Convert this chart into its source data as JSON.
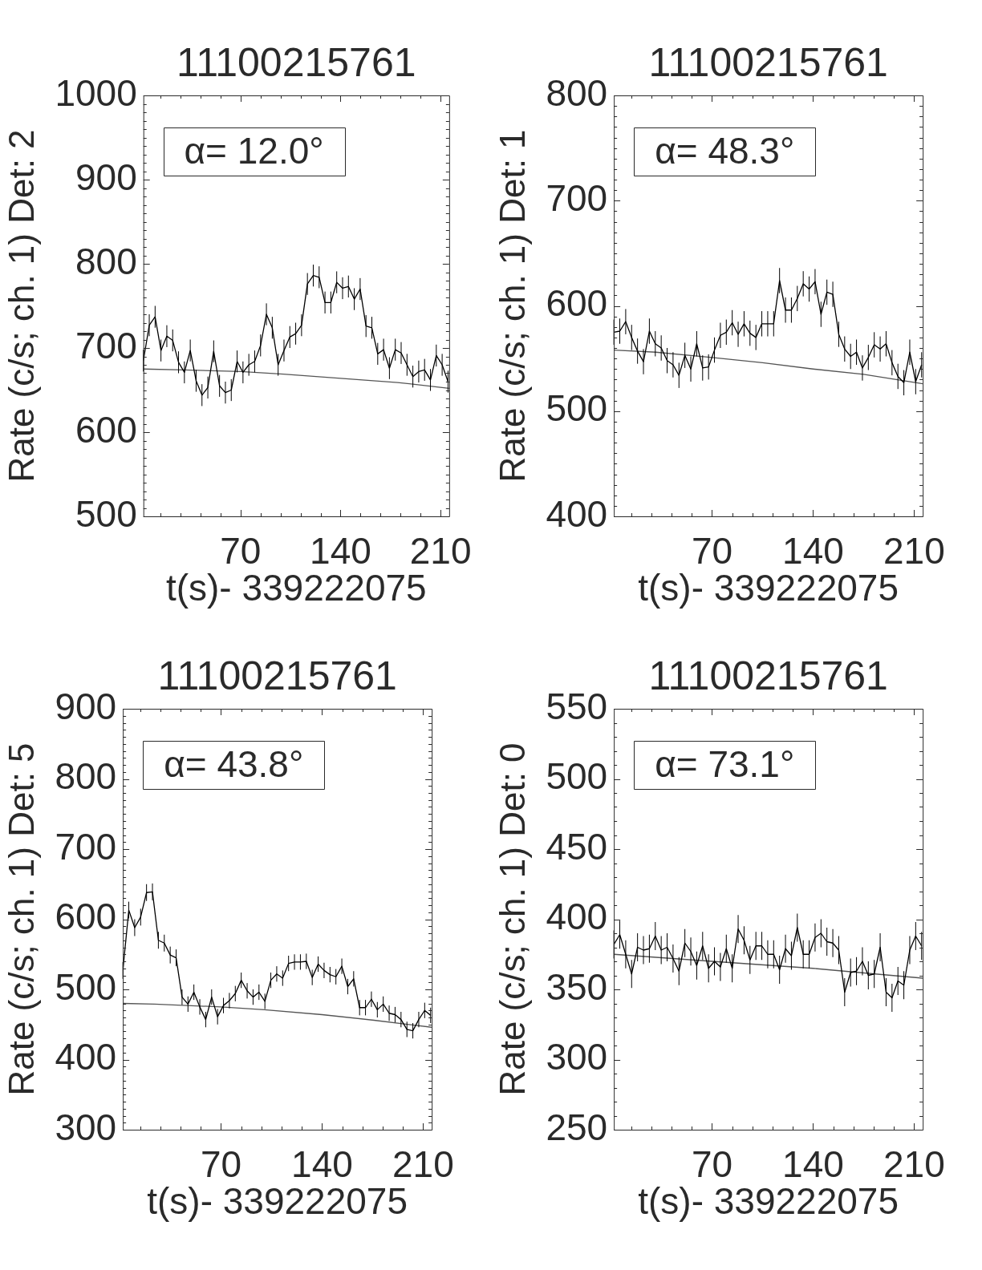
{
  "chart_data": [
    {
      "type": "line",
      "title": "11100215761",
      "xlabel": "t(s)- 339222075",
      "ylabel": "Rate (c/s; ch. 1) Det: 2",
      "annotations": [
        "α= 12.0°"
      ],
      "grid": false,
      "legend": false,
      "marker": "none",
      "xlim": [
        2,
        216
      ],
      "xticks": [
        {
          "value": 14,
          "label": null
        },
        {
          "value": 28,
          "label": null
        },
        {
          "value": 42,
          "label": null
        },
        {
          "value": 56,
          "label": null
        },
        70,
        {
          "value": 84,
          "label": null
        },
        {
          "value": 98,
          "label": null
        },
        {
          "value": 112,
          "label": null
        },
        {
          "value": 126,
          "label": null
        },
        140,
        {
          "value": 154,
          "label": null
        },
        {
          "value": 168,
          "label": null
        },
        {
          "value": 182,
          "label": null
        },
        {
          "value": 196,
          "label": null
        },
        210
      ],
      "ylim": [
        500,
        1000
      ],
      "yticks": [
        500,
        {
          "value": 510,
          "label": null
        },
        {
          "value": 520,
          "label": null
        },
        {
          "value": 530,
          "label": null
        },
        {
          "value": 540,
          "label": null
        },
        {
          "value": 550,
          "label": null
        },
        {
          "value": 560,
          "label": null
        },
        {
          "value": 570,
          "label": null
        },
        {
          "value": 580,
          "label": null
        },
        {
          "value": 590,
          "label": null
        },
        600,
        {
          "value": 610,
          "label": null
        },
        {
          "value": 620,
          "label": null
        },
        {
          "value": 630,
          "label": null
        },
        {
          "value": 640,
          "label": null
        },
        {
          "value": 650,
          "label": null
        },
        {
          "value": 660,
          "label": null
        },
        {
          "value": 670,
          "label": null
        },
        {
          "value": 680,
          "label": null
        },
        {
          "value": 690,
          "label": null
        },
        700,
        {
          "value": 710,
          "label": null
        },
        {
          "value": 720,
          "label": null
        },
        {
          "value": 730,
          "label": null
        },
        {
          "value": 740,
          "label": null
        },
        {
          "value": 750,
          "label": null
        },
        {
          "value": 760,
          "label": null
        },
        {
          "value": 770,
          "label": null
        },
        {
          "value": 780,
          "label": null
        },
        {
          "value": 790,
          "label": null
        },
        800,
        {
          "value": 810,
          "label": null
        },
        {
          "value": 820,
          "label": null
        },
        {
          "value": 830,
          "label": null
        },
        {
          "value": 840,
          "label": null
        },
        {
          "value": 850,
          "label": null
        },
        {
          "value": 860,
          "label": null
        },
        {
          "value": 870,
          "label": null
        },
        {
          "value": 880,
          "label": null
        },
        {
          "value": 890,
          "label": null
        },
        900,
        {
          "value": 910,
          "label": null
        },
        {
          "value": 920,
          "label": null
        },
        {
          "value": 930,
          "label": null
        },
        {
          "value": 940,
          "label": null
        },
        {
          "value": 950,
          "label": null
        },
        {
          "value": 960,
          "label": null
        },
        {
          "value": 970,
          "label": null
        },
        {
          "value": 980,
          "label": null
        },
        {
          "value": 990,
          "label": null
        },
        1000
      ],
      "x": [
        2,
        6.1,
        10.2,
        14.3,
        18.4,
        22.5,
        26.6,
        30.7,
        34.8,
        38.9,
        43,
        47.1,
        51.2,
        55.3,
        59.4,
        63.5,
        67.6,
        71.7,
        75.8,
        79.9,
        84,
        88.1,
        92.2,
        96.3,
        100.4,
        104.5,
        108.6,
        112.7,
        116.8,
        120.9,
        125,
        129.1,
        133.2,
        137.3,
        141.4,
        145.5,
        149.6,
        153.7,
        157.8,
        161.9,
        166,
        170.1,
        174.2,
        178.3,
        182.4,
        186.5,
        190.6,
        194.7,
        198.8,
        202.9,
        207,
        211.1,
        215.2
      ],
      "series": [
        {
          "color": "#000000",
          "values": [
            685,
            727,
            737,
            697,
            714,
            709,
            683,
            671,
            697,
            661,
            644,
            653,
            696,
            655,
            647,
            650,
            684,
            671,
            680,
            684,
            703,
            740,
            724,
            680,
            697,
            713,
            717,
            727,
            776,
            786,
            784,
            754,
            754,
            778,
            771,
            773,
            758,
            770,
            726,
            724,
            693,
            698,
            676,
            698,
            694,
            680,
            666,
            672,
            674,
            662,
            691,
            680,
            660
          ],
          "errors": [
            13,
            13,
            13,
            13,
            13,
            13,
            13,
            13,
            13,
            13,
            13,
            13,
            13,
            13,
            13,
            13,
            13,
            13,
            13,
            13,
            13,
            13,
            13,
            13,
            13,
            13,
            13,
            13,
            13,
            13,
            13,
            13,
            13,
            13,
            13,
            13,
            13,
            13,
            13,
            13,
            13,
            13,
            13,
            13,
            13,
            13,
            13,
            13,
            13,
            13,
            13,
            13,
            13
          ]
        },
        {
          "color": "#555555",
          "x": [
            2,
            30,
            70,
            100,
            140,
            180,
            216
          ],
          "values": [
            675,
            674,
            672,
            669,
            664,
            659,
            652
          ]
        }
      ]
    },
    {
      "type": "line",
      "title": "11100215761",
      "xlabel": "t(s)- 339222075",
      "ylabel": "Rate (c/s; ch. 1) Det: 1",
      "annotations": [
        "α= 48.3°"
      ],
      "grid": false,
      "legend": false,
      "marker": "none",
      "xlim": [
        2,
        216
      ],
      "xticks": [
        {
          "value": 14,
          "label": null
        },
        {
          "value": 28,
          "label": null
        },
        {
          "value": 42,
          "label": null
        },
        {
          "value": 56,
          "label": null
        },
        70,
        {
          "value": 84,
          "label": null
        },
        {
          "value": 98,
          "label": null
        },
        {
          "value": 112,
          "label": null
        },
        {
          "value": 126,
          "label": null
        },
        140,
        {
          "value": 154,
          "label": null
        },
        {
          "value": 168,
          "label": null
        },
        {
          "value": 182,
          "label": null
        },
        {
          "value": 196,
          "label": null
        },
        210
      ],
      "ylim": [
        400,
        800
      ],
      "yticks": [
        400,
        {
          "value": 410,
          "label": null
        },
        {
          "value": 420,
          "label": null
        },
        {
          "value": 430,
          "label": null
        },
        {
          "value": 440,
          "label": null
        },
        {
          "value": 450,
          "label": null
        },
        {
          "value": 460,
          "label": null
        },
        {
          "value": 470,
          "label": null
        },
        {
          "value": 480,
          "label": null
        },
        {
          "value": 490,
          "label": null
        },
        500,
        {
          "value": 510,
          "label": null
        },
        {
          "value": 520,
          "label": null
        },
        {
          "value": 530,
          "label": null
        },
        {
          "value": 540,
          "label": null
        },
        {
          "value": 550,
          "label": null
        },
        {
          "value": 560,
          "label": null
        },
        {
          "value": 570,
          "label": null
        },
        {
          "value": 580,
          "label": null
        },
        {
          "value": 590,
          "label": null
        },
        600,
        {
          "value": 610,
          "label": null
        },
        {
          "value": 620,
          "label": null
        },
        {
          "value": 630,
          "label": null
        },
        {
          "value": 640,
          "label": null
        },
        {
          "value": 650,
          "label": null
        },
        {
          "value": 660,
          "label": null
        },
        {
          "value": 670,
          "label": null
        },
        {
          "value": 680,
          "label": null
        },
        {
          "value": 690,
          "label": null
        },
        700,
        {
          "value": 710,
          "label": null
        },
        {
          "value": 720,
          "label": null
        },
        {
          "value": 730,
          "label": null
        },
        {
          "value": 740,
          "label": null
        },
        {
          "value": 750,
          "label": null
        },
        {
          "value": 760,
          "label": null
        },
        {
          "value": 770,
          "label": null
        },
        {
          "value": 780,
          "label": null
        },
        {
          "value": 790,
          "label": null
        },
        800
      ],
      "x": [
        2,
        6.1,
        10.2,
        14.3,
        18.4,
        22.5,
        26.6,
        30.7,
        34.8,
        38.9,
        43,
        47.1,
        51.2,
        55.3,
        59.4,
        63.5,
        67.6,
        71.7,
        75.8,
        79.9,
        84,
        88.1,
        92.2,
        96.3,
        100.4,
        104.5,
        108.6,
        112.7,
        116.8,
        120.9,
        125,
        129.1,
        133.2,
        137.3,
        141.4,
        145.5,
        149.6,
        153.7,
        157.8,
        161.9,
        166,
        170.1,
        174.2,
        178.3,
        182.4,
        186.5,
        190.6,
        194.7,
        198.8,
        202.9,
        207,
        211.1,
        215.2
      ],
      "series": [
        {
          "color": "#000000",
          "values": [
            575,
            576,
            585,
            570,
            557,
            547,
            576,
            564,
            560,
            548,
            544,
            534,
            553,
            540,
            564,
            541,
            542,
            558,
            572,
            575,
            584,
            573,
            583,
            574,
            570,
            583,
            583,
            583,
            624,
            596,
            596,
            607,
            621,
            616,
            623,
            592,
            613,
            611,
            573,
            559,
            552,
            556,
            541,
            551,
            563,
            559,
            564,
            546,
            533,
            527,
            556,
            528,
            544
          ],
          "errors": [
            12,
            12,
            12,
            12,
            12,
            12,
            12,
            12,
            12,
            12,
            12,
            12,
            12,
            12,
            12,
            12,
            12,
            12,
            12,
            12,
            12,
            12,
            12,
            12,
            12,
            12,
            12,
            12,
            12,
            12,
            12,
            12,
            12,
            12,
            12,
            12,
            12,
            12,
            12,
            12,
            12,
            12,
            12,
            12,
            12,
            12,
            12,
            12,
            12,
            12,
            12,
            12,
            12
          ]
        },
        {
          "color": "#555555",
          "x": [
            2,
            31,
            70,
            105,
            140,
            175,
            216
          ],
          "values": [
            558,
            556,
            551,
            546,
            540,
            535,
            526
          ]
        }
      ]
    },
    {
      "type": "line",
      "title": "11100215761",
      "xlabel": "t(s)- 339222075",
      "ylabel": "Rate (c/s; ch. 1) Det: 5",
      "annotations": [
        "α= 43.8°"
      ],
      "grid": false,
      "legend": false,
      "marker": "none",
      "xlim": [
        2,
        216
      ],
      "xticks": [
        {
          "value": 14,
          "label": null
        },
        {
          "value": 28,
          "label": null
        },
        {
          "value": 42,
          "label": null
        },
        {
          "value": 56,
          "label": null
        },
        70,
        {
          "value": 84,
          "label": null
        },
        {
          "value": 98,
          "label": null
        },
        {
          "value": 112,
          "label": null
        },
        {
          "value": 126,
          "label": null
        },
        140,
        {
          "value": 154,
          "label": null
        },
        {
          "value": 168,
          "label": null
        },
        {
          "value": 182,
          "label": null
        },
        {
          "value": 196,
          "label": null
        },
        210
      ],
      "ylim": [
        300,
        900
      ],
      "yticks": [
        300,
        {
          "value": 310,
          "label": null
        },
        {
          "value": 320,
          "label": null
        },
        {
          "value": 330,
          "label": null
        },
        {
          "value": 340,
          "label": null
        },
        {
          "value": 350,
          "label": null
        },
        {
          "value": 360,
          "label": null
        },
        {
          "value": 370,
          "label": null
        },
        {
          "value": 380,
          "label": null
        },
        {
          "value": 390,
          "label": null
        },
        400,
        {
          "value": 410,
          "label": null
        },
        {
          "value": 420,
          "label": null
        },
        {
          "value": 430,
          "label": null
        },
        {
          "value": 440,
          "label": null
        },
        {
          "value": 450,
          "label": null
        },
        {
          "value": 460,
          "label": null
        },
        {
          "value": 470,
          "label": null
        },
        {
          "value": 480,
          "label": null
        },
        {
          "value": 490,
          "label": null
        },
        500,
        {
          "value": 510,
          "label": null
        },
        {
          "value": 520,
          "label": null
        },
        {
          "value": 530,
          "label": null
        },
        {
          "value": 540,
          "label": null
        },
        {
          "value": 550,
          "label": null
        },
        {
          "value": 560,
          "label": null
        },
        {
          "value": 570,
          "label": null
        },
        {
          "value": 580,
          "label": null
        },
        {
          "value": 590,
          "label": null
        },
        600,
        {
          "value": 610,
          "label": null
        },
        {
          "value": 620,
          "label": null
        },
        {
          "value": 630,
          "label": null
        },
        {
          "value": 640,
          "label": null
        },
        {
          "value": 650,
          "label": null
        },
        {
          "value": 660,
          "label": null
        },
        {
          "value": 670,
          "label": null
        },
        {
          "value": 680,
          "label": null
        },
        {
          "value": 690,
          "label": null
        },
        700,
        {
          "value": 710,
          "label": null
        },
        {
          "value": 720,
          "label": null
        },
        {
          "value": 730,
          "label": null
        },
        {
          "value": 740,
          "label": null
        },
        {
          "value": 750,
          "label": null
        },
        {
          "value": 760,
          "label": null
        },
        {
          "value": 770,
          "label": null
        },
        {
          "value": 780,
          "label": null
        },
        {
          "value": 790,
          "label": null
        },
        800,
        {
          "value": 810,
          "label": null
        },
        {
          "value": 820,
          "label": null
        },
        {
          "value": 830,
          "label": null
        },
        {
          "value": 840,
          "label": null
        },
        {
          "value": 850,
          "label": null
        },
        {
          "value": 860,
          "label": null
        },
        {
          "value": 870,
          "label": null
        },
        {
          "value": 880,
          "label": null
        },
        {
          "value": 890,
          "label": null
        },
        900
      ],
      "x": [
        2,
        6.1,
        10.2,
        14.3,
        18.4,
        22.5,
        26.6,
        30.7,
        34.8,
        38.9,
        43,
        47.1,
        51.2,
        55.3,
        59.4,
        63.5,
        67.6,
        71.7,
        75.8,
        79.9,
        84,
        88.1,
        92.2,
        96.3,
        100.4,
        104.5,
        108.6,
        112.7,
        116.8,
        120.9,
        125,
        129.1,
        133.2,
        137.3,
        141.4,
        145.5,
        149.6,
        153.7,
        157.8,
        161.9,
        166,
        170.1,
        174.2,
        178.3,
        182.4,
        186.5,
        190.6,
        194.7,
        198.8,
        202.9,
        207,
        211.1,
        215.2
      ],
      "series": [
        {
          "color": "#000000",
          "values": [
            527,
            613,
            588,
            603,
            638,
            639,
            570,
            566,
            549,
            545,
            489,
            479,
            496,
            475,
            457,
            489,
            461,
            477,
            484,
            494,
            513,
            498,
            489,
            496,
            483,
            513,
            522,
            516,
            537,
            539,
            539,
            540,
            517,
            536,
            527,
            521,
            518,
            533,
            504,
            515,
            474,
            474,
            486,
            471,
            479,
            466,
            464,
            457,
            443,
            441,
            457,
            470,
            463
          ],
          "errors": [
            12,
            12,
            12,
            12,
            12,
            12,
            12,
            12,
            12,
            12,
            11,
            11,
            11,
            11,
            11,
            11,
            11,
            11,
            11,
            11,
            11,
            11,
            11,
            11,
            11,
            11,
            11,
            11,
            11,
            11,
            11,
            11,
            11,
            11,
            11,
            11,
            11,
            11,
            11,
            11,
            11,
            11,
            11,
            11,
            11,
            11,
            11,
            11,
            11,
            11,
            11,
            11,
            11
          ]
        },
        {
          "color": "#555555",
          "x": [
            2,
            24,
            70,
            100,
            140,
            176,
            216
          ],
          "values": [
            480,
            479,
            475,
            471,
            464,
            456,
            446
          ]
        }
      ]
    },
    {
      "type": "line",
      "title": "11100215761",
      "xlabel": "t(s)- 339222075",
      "ylabel": "Rate (c/s; ch. 1) Det: 0",
      "annotations": [
        "α= 73.1°"
      ],
      "grid": false,
      "legend": false,
      "marker": "none",
      "xlim": [
        2,
        216
      ],
      "xticks": [
        {
          "value": 14,
          "label": null
        },
        {
          "value": 28,
          "label": null
        },
        {
          "value": 42,
          "label": null
        },
        {
          "value": 56,
          "label": null
        },
        70,
        {
          "value": 84,
          "label": null
        },
        {
          "value": 98,
          "label": null
        },
        {
          "value": 112,
          "label": null
        },
        {
          "value": 126,
          "label": null
        },
        140,
        {
          "value": 154,
          "label": null
        },
        {
          "value": 168,
          "label": null
        },
        {
          "value": 182,
          "label": null
        },
        {
          "value": 196,
          "label": null
        },
        210
      ],
      "ylim": [
        250,
        550
      ],
      "yticks": [
        250,
        {
          "value": 260,
          "label": null
        },
        {
          "value": 270,
          "label": null
        },
        {
          "value": 280,
          "label": null
        },
        {
          "value": 290,
          "label": null
        },
        300,
        {
          "value": 310,
          "label": null
        },
        {
          "value": 320,
          "label": null
        },
        {
          "value": 330,
          "label": null
        },
        {
          "value": 340,
          "label": null
        },
        350,
        {
          "value": 360,
          "label": null
        },
        {
          "value": 370,
          "label": null
        },
        {
          "value": 380,
          "label": null
        },
        {
          "value": 390,
          "label": null
        },
        400,
        {
          "value": 410,
          "label": null
        },
        {
          "value": 420,
          "label": null
        },
        {
          "value": 430,
          "label": null
        },
        {
          "value": 440,
          "label": null
        },
        450,
        {
          "value": 460,
          "label": null
        },
        {
          "value": 470,
          "label": null
        },
        {
          "value": 480,
          "label": null
        },
        {
          "value": 490,
          "label": null
        },
        500,
        {
          "value": 510,
          "label": null
        },
        {
          "value": 520,
          "label": null
        },
        {
          "value": 530,
          "label": null
        },
        {
          "value": 540,
          "label": null
        },
        550
      ],
      "x": [
        2,
        6.1,
        10.2,
        14.3,
        18.4,
        22.5,
        26.6,
        30.7,
        34.8,
        38.9,
        43,
        47.1,
        51.2,
        55.3,
        59.4,
        63.5,
        67.6,
        71.7,
        75.8,
        79.9,
        84,
        88.1,
        92.2,
        96.3,
        100.4,
        104.5,
        108.6,
        112.7,
        116.8,
        120.9,
        125,
        129.1,
        133.2,
        137.3,
        141.4,
        145.5,
        149.6,
        153.7,
        157.8,
        161.9,
        166,
        170.1,
        174.2,
        178.3,
        182.4,
        186.5,
        190.6,
        194.7,
        198.8,
        202.9,
        207,
        211.1,
        215.2
      ],
      "series": [
        {
          "color": "#000000",
          "values": [
            382,
            389,
            375,
            361,
            380,
            378,
            379,
            388,
            378,
            380,
            372,
            363,
            383,
            377,
            367,
            381,
            365,
            370,
            366,
            379,
            365,
            393,
            385,
            371,
            381,
            381,
            375,
            375,
            364,
            379,
            374,
            394,
            375,
            375,
            387,
            390,
            384,
            383,
            378,
            348,
            362,
            363,
            370,
            360,
            361,
            380,
            348,
            344,
            356,
            353,
            378,
            388,
            381
          ],
          "errors": [
            10,
            10,
            10,
            10,
            10,
            10,
            10,
            10,
            10,
            10,
            10,
            10,
            10,
            10,
            10,
            10,
            10,
            10,
            10,
            10,
            10,
            10,
            10,
            10,
            10,
            10,
            10,
            10,
            10,
            10,
            10,
            10,
            10,
            10,
            10,
            10,
            10,
            10,
            10,
            10,
            10,
            10,
            10,
            10,
            10,
            10,
            10,
            10,
            10,
            10,
            10,
            10,
            10
          ]
        },
        {
          "color": "#555555",
          "x": [
            2,
            70,
            140,
            183,
            216
          ],
          "values": [
            375,
            370,
            365,
            361,
            358
          ]
        }
      ]
    }
  ]
}
